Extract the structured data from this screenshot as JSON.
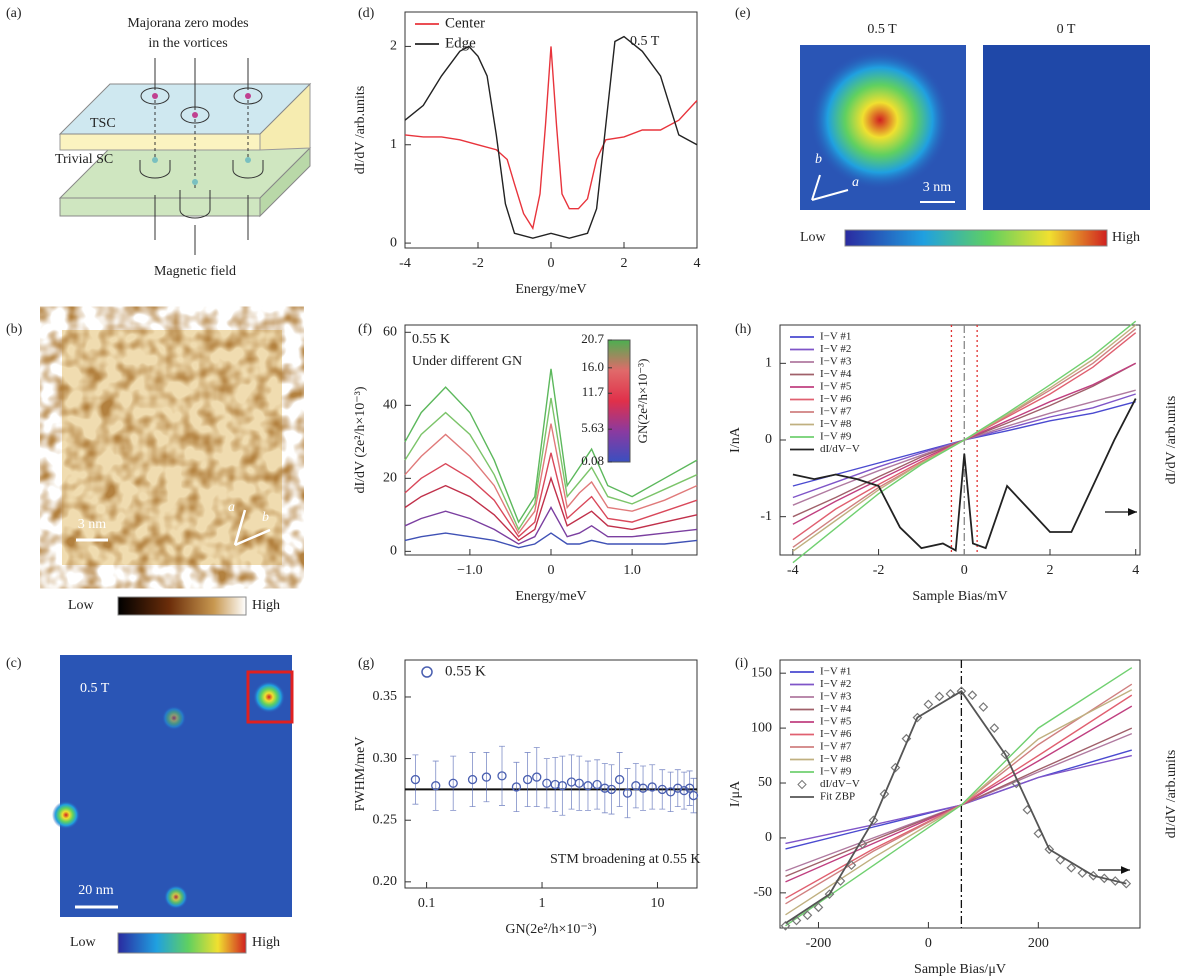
{
  "panels": {
    "a": {
      "label": "(a)",
      "title": "Majorana zero modes",
      "title2": "in the vortices",
      "layers": [
        "TSC",
        "Trivial SC"
      ],
      "field": "Magnetic field"
    },
    "b": {
      "label": "(b)",
      "scale_bar": "3 nm",
      "axes": [
        "a",
        "b"
      ],
      "colorbar": [
        "Low",
        "High"
      ]
    },
    "c": {
      "label": "(c)",
      "field": "0.5 T",
      "scale_bar": "20 nm",
      "colorbar": [
        "Low",
        "High"
      ]
    },
    "e": {
      "label": "(e)",
      "maps": [
        "0.5 T",
        "0 T"
      ],
      "scale_bar": "3 nm",
      "axes": [
        "a",
        "b"
      ],
      "colorbar": [
        "Low",
        "High"
      ]
    }
  },
  "chart_data": [
    {
      "label": "(d)",
      "type": "line",
      "annotations": [
        "0.5 T"
      ],
      "xlabel": "Energy/meV",
      "ylabel": "dI/dV /arb.units",
      "xlim": [
        -4,
        4
      ],
      "xticks": [
        -4,
        -2,
        0,
        2,
        4
      ],
      "ylim": [
        -0.05,
        2.35
      ],
      "yticks": [
        0,
        1,
        2
      ],
      "legend": "upper left",
      "series": [
        {
          "name": "Center",
          "color": "#e8343c",
          "x": [
            -4,
            -3.5,
            -3,
            -2.5,
            -2,
            -1.5,
            -1.2,
            -1,
            -0.75,
            -0.5,
            -0.3,
            -0.15,
            0,
            0.15,
            0.3,
            0.5,
            0.75,
            1,
            1.25,
            1.5,
            2,
            2.5,
            3,
            3.5,
            4
          ],
          "values": [
            1.1,
            1.08,
            1.08,
            1.05,
            1.0,
            0.95,
            0.85,
            0.6,
            0.3,
            0.15,
            0.5,
            1.2,
            2.0,
            1.2,
            0.5,
            0.35,
            0.35,
            0.45,
            0.85,
            1.05,
            1.08,
            1.15,
            1.15,
            1.25,
            1.45
          ]
        },
        {
          "name": "Edge",
          "color": "#222222",
          "x": [
            -4,
            -3.5,
            -3,
            -2.5,
            -2.25,
            -2,
            -1.75,
            -1.5,
            -1.25,
            -1,
            -0.5,
            0,
            0.5,
            1,
            1.25,
            1.5,
            1.75,
            2,
            2.5,
            3,
            3.5,
            4
          ],
          "values": [
            1.25,
            1.4,
            1.7,
            1.95,
            2.0,
            1.9,
            1.7,
            1.1,
            0.4,
            0.1,
            0.05,
            0.1,
            0.05,
            0.1,
            0.35,
            1.2,
            2.05,
            2.1,
            1.95,
            1.7,
            1.1,
            1.0
          ]
        }
      ]
    },
    {
      "label": "(f)",
      "type": "line",
      "annotations": [
        "0.55 K",
        "Under different GN"
      ],
      "xlabel": "Energy/meV",
      "ylabel": "dI/dV (2e²/h×10⁻³)",
      "xlim": [
        -1.8,
        1.8
      ],
      "xticks": [
        {
          "value": -1,
          "label": "−1.0"
        },
        0,
        {
          "value": 1,
          "label": "1.0"
        }
      ],
      "ylim": [
        -1,
        62
      ],
      "yticks": [
        0,
        20,
        40,
        60
      ],
      "colorbar": {
        "label": "GN(2e²/h×10⁻³)",
        "colors": [
          "#3a4fc0",
          "#8a3aa0",
          "#e0304a",
          "#e06a6a",
          "#4caf50"
        ],
        "lim": [
          0.08,
          20.7
        ],
        "ticks": [
          0.08,
          5.63,
          11.7,
          {
            "value": 16,
            "label": "16.0"
          },
          20.7
        ]
      },
      "x": [
        -1.8,
        -1.6,
        -1.3,
        -1.0,
        -0.7,
        -0.4,
        -0.2,
        0,
        0.2,
        0.35,
        0.5,
        0.7,
        1.0,
        1.4,
        1.8
      ],
      "series": [
        {
          "color": "#5cb85c",
          "values": [
            30,
            38,
            45,
            38,
            25,
            8,
            15,
            50,
            18,
            23,
            28,
            18,
            15,
            20,
            25
          ]
        },
        {
          "color": "#7cc46a",
          "values": [
            25,
            32,
            38,
            32,
            21,
            6,
            13,
            42,
            15,
            19,
            23,
            15,
            13,
            17,
            21
          ]
        },
        {
          "color": "#e07a7a",
          "values": [
            21,
            26,
            32,
            26,
            18,
            5,
            11,
            35,
            12,
            16,
            19,
            12,
            11,
            14,
            18
          ]
        },
        {
          "color": "#d9485a",
          "values": [
            16,
            20,
            24,
            20,
            14,
            4,
            8,
            27,
            9,
            12,
            15,
            9,
            8,
            11,
            14
          ]
        },
        {
          "color": "#c0304a",
          "values": [
            12,
            15,
            18,
            15,
            10,
            3,
            6,
            20,
            7,
            9,
            11,
            7,
            6,
            8,
            10
          ]
        },
        {
          "color": "#7b3fa0",
          "values": [
            7,
            9,
            11,
            9,
            6,
            2,
            4,
            12,
            4,
            5,
            7,
            4,
            4,
            5,
            6
          ]
        },
        {
          "color": "#3f51b5",
          "values": [
            3,
            4,
            5,
            4,
            3,
            1,
            2,
            5,
            2,
            2,
            3,
            2,
            2,
            2,
            3
          ]
        }
      ]
    },
    {
      "label": "(g)",
      "type": "scatter",
      "xscale": "log",
      "annotations": [
        "STM broadening at 0.55 K"
      ],
      "xlabel": "GN(2e²/h×10⁻³)",
      "ylabel": "FWHM/meV",
      "xlim": [
        0.065,
        22
      ],
      "xticks": [
        0.1,
        1,
        10
      ],
      "ylim": [
        0.195,
        0.38
      ],
      "yticks": [
        {
          "value": 0.2,
          "label": "0.20"
        },
        0.25,
        {
          "value": 0.3,
          "label": "0.30"
        },
        0.35
      ],
      "hlines": [
        {
          "value": 0.275,
          "color": "#111111"
        }
      ],
      "series": [
        {
          "name": "0.55 K",
          "color": "#4a5fb0",
          "marker": "circle",
          "x": [
            0.08,
            0.12,
            0.17,
            0.25,
            0.33,
            0.45,
            0.6,
            0.75,
            0.9,
            1.1,
            1.3,
            1.5,
            1.8,
            2.1,
            2.5,
            3,
            3.5,
            4,
            4.7,
            5.5,
            6.5,
            7.5,
            9,
            11,
            13,
            15,
            17,
            19,
            20.5
          ],
          "values": [
            0.283,
            0.278,
            0.28,
            0.283,
            0.285,
            0.286,
            0.277,
            0.283,
            0.285,
            0.28,
            0.279,
            0.278,
            0.281,
            0.28,
            0.278,
            0.279,
            0.276,
            0.275,
            0.283,
            0.272,
            0.278,
            0.276,
            0.277,
            0.275,
            0.273,
            0.276,
            0.274,
            0.276,
            0.27
          ],
          "errors": [
            0.02,
            0.02,
            0.022,
            0.022,
            0.02,
            0.024,
            0.02,
            0.022,
            0.024,
            0.02,
            0.022,
            0.024,
            0.022,
            0.022,
            0.02,
            0.02,
            0.02,
            0.02,
            0.022,
            0.02,
            0.018,
            0.018,
            0.018,
            0.016,
            0.016,
            0.015,
            0.015,
            0.014,
            0.014
          ]
        }
      ]
    },
    {
      "label": "(h)",
      "type": "line",
      "xlabel": "Sample Bias/mV",
      "ylabel": "I/nA",
      "y2label": "dI/dV /arb.units",
      "xlim": [
        -4.3,
        4.1
      ],
      "xticks": [
        -4,
        -2,
        0,
        2,
        4
      ],
      "ylim": [
        -1.5,
        1.5
      ],
      "yticks": [
        -1,
        0,
        1
      ],
      "y2lim": [
        0,
        1
      ],
      "vlines": [
        {
          "value": -0.3,
          "color": "#e03030",
          "style": "dotted"
        },
        {
          "value": 0,
          "color": "#888888",
          "style": "dashdot"
        },
        {
          "value": 0.3,
          "color": "#e03030",
          "style": "dotted"
        }
      ],
      "x": [
        -4,
        -3,
        -2,
        -1,
        0,
        1,
        2,
        3,
        4
      ],
      "series": [
        {
          "name": "I−V #1",
          "color": "#4a4ad0",
          "values": [
            -0.6,
            -0.45,
            -0.3,
            -0.15,
            0,
            0.12,
            0.25,
            0.35,
            0.5
          ]
        },
        {
          "name": "I−V #2",
          "color": "#7f55c8",
          "values": [
            -0.75,
            -0.55,
            -0.35,
            -0.17,
            0,
            0.15,
            0.3,
            0.42,
            0.6
          ]
        },
        {
          "name": "I−V #3",
          "color": "#b07aa0",
          "values": [
            -0.85,
            -0.62,
            -0.4,
            -0.2,
            0,
            0.18,
            0.35,
            0.5,
            0.65
          ]
        },
        {
          "name": "I−V #4",
          "color": "#a0606a",
          "values": [
            -1,
            -0.75,
            -0.48,
            -0.22,
            0,
            0.22,
            0.45,
            0.7,
            1.0
          ]
        },
        {
          "name": "I−V #5",
          "color": "#c04080",
          "values": [
            -1.1,
            -0.8,
            -0.52,
            -0.25,
            0,
            0.25,
            0.5,
            0.72,
            1.0
          ]
        },
        {
          "name": "I−V #6",
          "color": "#e06070",
          "values": [
            -1.3,
            -0.9,
            -0.58,
            -0.28,
            0,
            0.3,
            0.6,
            0.95,
            1.4
          ]
        },
        {
          "name": "I−V #7",
          "color": "#d08080",
          "values": [
            -1.4,
            -1,
            -0.62,
            -0.3,
            0,
            0.32,
            0.65,
            1.0,
            1.45
          ]
        },
        {
          "name": "I−V #8",
          "color": "#c0b080",
          "values": [
            -1.45,
            -1.05,
            -0.65,
            -0.3,
            0,
            0.33,
            0.68,
            1.05,
            1.5
          ]
        },
        {
          "name": "I−V #9",
          "color": "#70d070",
          "values": [
            -1.6,
            -1.15,
            -0.7,
            -0.32,
            0,
            0.35,
            0.72,
            1.1,
            1.55
          ]
        },
        {
          "name": "dI/dV−V",
          "color": "#222222",
          "axis": "y2",
          "x": [
            -4,
            -3.5,
            -3,
            -2.5,
            -2,
            -1.5,
            -1,
            -0.5,
            -0.2,
            0,
            0.2,
            0.5,
            1,
            1.5,
            2,
            2.5,
            3,
            3.5,
            4
          ],
          "values": [
            0.35,
            0.33,
            0.35,
            0.33,
            0.3,
            0.12,
            0.03,
            0.05,
            0.02,
            0.44,
            0.05,
            0.03,
            0.3,
            0.2,
            0.1,
            0.1,
            0.3,
            0.5,
            0.68
          ]
        }
      ]
    },
    {
      "label": "(i)",
      "type": "line",
      "xlabel": "Sample Bias/μV",
      "ylabel": "I/μA",
      "y2label": "dI/dV /arb.units",
      "xlim": [
        -270,
        385
      ],
      "xticks": [
        -200,
        0,
        200
      ],
      "ylim": [
        -82,
        162
      ],
      "yticks": [
        -50,
        0,
        50,
        100,
        150
      ],
      "y2lim": [
        -0.0083,
        1.0083
      ],
      "vlines": [
        {
          "value": 60,
          "color": "#111111",
          "style": "dashdot"
        }
      ],
      "x": [
        -260,
        -100,
        60,
        200,
        370
      ],
      "series": [
        {
          "name": "I−V #1",
          "color": "#4a4ad0",
          "values": [
            -10,
            10,
            30,
            55,
            80
          ]
        },
        {
          "name": "I−V #2",
          "color": "#7f55c8",
          "values": [
            -5,
            12,
            30,
            55,
            75
          ]
        },
        {
          "name": "I−V #3",
          "color": "#b07aa0",
          "values": [
            -30,
            0,
            30,
            60,
            95
          ]
        },
        {
          "name": "I−V #4",
          "color": "#a0606a",
          "values": [
            -35,
            -2,
            30,
            62,
            100
          ]
        },
        {
          "name": "I−V #5",
          "color": "#c04080",
          "values": [
            -40,
            -5,
            30,
            70,
            120
          ]
        },
        {
          "name": "I−V #6",
          "color": "#e06070",
          "values": [
            -55,
            -10,
            30,
            75,
            130
          ]
        },
        {
          "name": "I−V #7",
          "color": "#d08080",
          "values": [
            -60,
            -12,
            30,
            85,
            140
          ]
        },
        {
          "name": "I−V #8",
          "color": "#c0b080",
          "values": [
            -70,
            -18,
            30,
            90,
            135
          ]
        },
        {
          "name": "I−V #9",
          "color": "#70d070",
          "values": [
            -80,
            -25,
            30,
            100,
            155
          ]
        },
        {
          "name": "dI/dV−V",
          "color": "#777777",
          "axis": "y2",
          "marker": "diamond",
          "x": [
            -260,
            -240,
            -220,
            -200,
            -180,
            -160,
            -140,
            -120,
            -100,
            -80,
            -60,
            -40,
            -20,
            0,
            20,
            40,
            60,
            80,
            100,
            120,
            140,
            160,
            180,
            200,
            220,
            240,
            260,
            280,
            300,
            320,
            340,
            360
          ],
          "values": [
            0,
            0.02,
            0.04,
            0.07,
            0.12,
            0.17,
            0.23,
            0.31,
            0.4,
            0.5,
            0.6,
            0.71,
            0.79,
            0.84,
            0.87,
            0.88,
            0.89,
            0.875,
            0.83,
            0.75,
            0.65,
            0.54,
            0.44,
            0.35,
            0.29,
            0.25,
            0.22,
            0.2,
            0.19,
            0.18,
            0.17,
            0.16
          ]
        },
        {
          "name": "Fit ZBP",
          "color": "#555555",
          "axis": "y2",
          "x": [
            -260,
            -180,
            -100,
            -20,
            60,
            140,
            220,
            300,
            360
          ],
          "values": [
            0.01,
            0.12,
            0.4,
            0.79,
            0.89,
            0.65,
            0.29,
            0.19,
            0.16
          ]
        }
      ]
    }
  ]
}
